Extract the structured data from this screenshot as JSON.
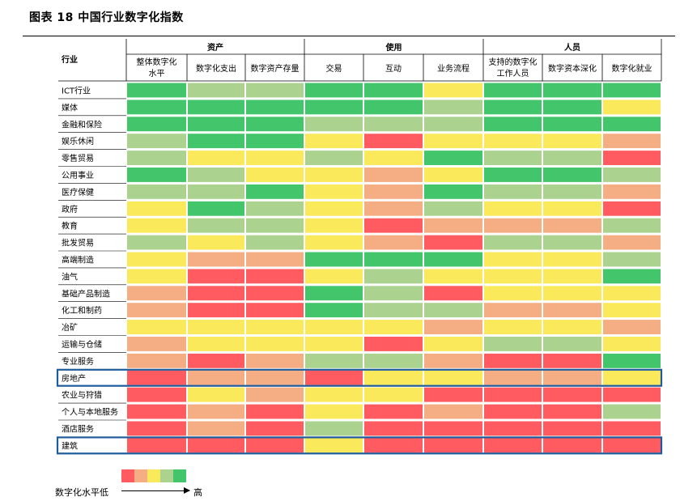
{
  "title": "图表 18 中国行业数字化指数",
  "legend": {
    "low_label": "数字化水平低",
    "high_label": "高",
    "colors": [
      "#ff5b61",
      "#f5ad84",
      "#fbe95c",
      "#abd28e",
      "#43c56c"
    ]
  },
  "highlight_color": "#1f5c9c",
  "chart_data": {
    "type": "heatmap",
    "row_header": "行业",
    "column_groups": [
      {
        "name": "资产",
        "columns": [
          "整体数字化水平",
          "数字化支出",
          "数字资产存量"
        ]
      },
      {
        "name": "使用",
        "columns": [
          "交易",
          "互动",
          "业务流程"
        ]
      },
      {
        "name": "人员",
        "columns": [
          "支持的数字化工作人员",
          "数字资本深化",
          "数字化就业"
        ]
      }
    ],
    "column_labels": [
      [
        "整体数字化",
        "水平"
      ],
      [
        "数字化支出"
      ],
      [
        "数字资产存量"
      ],
      [
        "交易"
      ],
      [
        "互动"
      ],
      [
        "业务流程"
      ],
      [
        "支持的数字化",
        "工作人员"
      ],
      [
        "数字资本深化"
      ],
      [
        "数字化就业"
      ]
    ],
    "rows": [
      {
        "name": "ICT行业",
        "values": [
          5,
          4,
          4,
          5,
          5,
          3,
          5,
          5,
          5
        ]
      },
      {
        "name": "媒体",
        "values": [
          5,
          5,
          5,
          5,
          5,
          4,
          5,
          5,
          3
        ]
      },
      {
        "name": "金融和保险",
        "values": [
          5,
          5,
          5,
          4,
          4,
          4,
          5,
          5,
          5
        ]
      },
      {
        "name": "娱乐休闲",
        "values": [
          4,
          5,
          5,
          3,
          1,
          3,
          3,
          3,
          2
        ]
      },
      {
        "name": "零售贸易",
        "values": [
          4,
          3,
          3,
          4,
          3,
          5,
          4,
          4,
          1
        ]
      },
      {
        "name": "公用事业",
        "values": [
          5,
          4,
          3,
          3,
          2,
          3,
          5,
          5,
          4
        ]
      },
      {
        "name": "医疗保健",
        "values": [
          4,
          4,
          5,
          3,
          2,
          5,
          4,
          4,
          2
        ]
      },
      {
        "name": "政府",
        "values": [
          3,
          5,
          4,
          3,
          2,
          4,
          3,
          3,
          1
        ]
      },
      {
        "name": "教育",
        "values": [
          3,
          4,
          4,
          3,
          1,
          2,
          2,
          2,
          4
        ]
      },
      {
        "name": "批发贸易",
        "values": [
          4,
          3,
          4,
          3,
          2,
          1,
          4,
          4,
          2
        ]
      },
      {
        "name": "高端制造",
        "values": [
          3,
          2,
          2,
          5,
          5,
          5,
          3,
          3,
          4
        ]
      },
      {
        "name": "油气",
        "values": [
          3,
          1,
          1,
          3,
          4,
          3,
          3,
          3,
          5
        ]
      },
      {
        "name": "基础产品制造",
        "values": [
          2,
          1,
          1,
          5,
          4,
          1,
          3,
          3,
          3
        ]
      },
      {
        "name": "化工和制药",
        "values": [
          2,
          1,
          1,
          5,
          4,
          4,
          2,
          2,
          3
        ]
      },
      {
        "name": "冶矿",
        "values": [
          3,
          3,
          3,
          3,
          3,
          2,
          3,
          3,
          2
        ]
      },
      {
        "name": "运输与仓储",
        "values": [
          2,
          3,
          3,
          3,
          1,
          3,
          4,
          4,
          3
        ]
      },
      {
        "name": "专业服务",
        "values": [
          2,
          1,
          2,
          4,
          4,
          2,
          1,
          1,
          5
        ]
      },
      {
        "name": "房地产",
        "values": [
          1,
          2,
          2,
          1,
          3,
          3,
          2,
          2,
          3
        ]
      },
      {
        "name": "农业与狩猎",
        "values": [
          1,
          3,
          2,
          3,
          3,
          1,
          1,
          1,
          1
        ]
      },
      {
        "name": "个人与本地服务",
        "values": [
          1,
          2,
          1,
          3,
          1,
          2,
          1,
          1,
          4
        ]
      },
      {
        "name": "酒店服务",
        "values": [
          1,
          2,
          1,
          4,
          1,
          1,
          1,
          1,
          1
        ]
      },
      {
        "name": "建筑",
        "values": [
          1,
          1,
          1,
          3,
          1,
          1,
          1,
          1,
          1
        ]
      }
    ],
    "highlighted_rows": [
      "房地产",
      "建筑"
    ]
  }
}
